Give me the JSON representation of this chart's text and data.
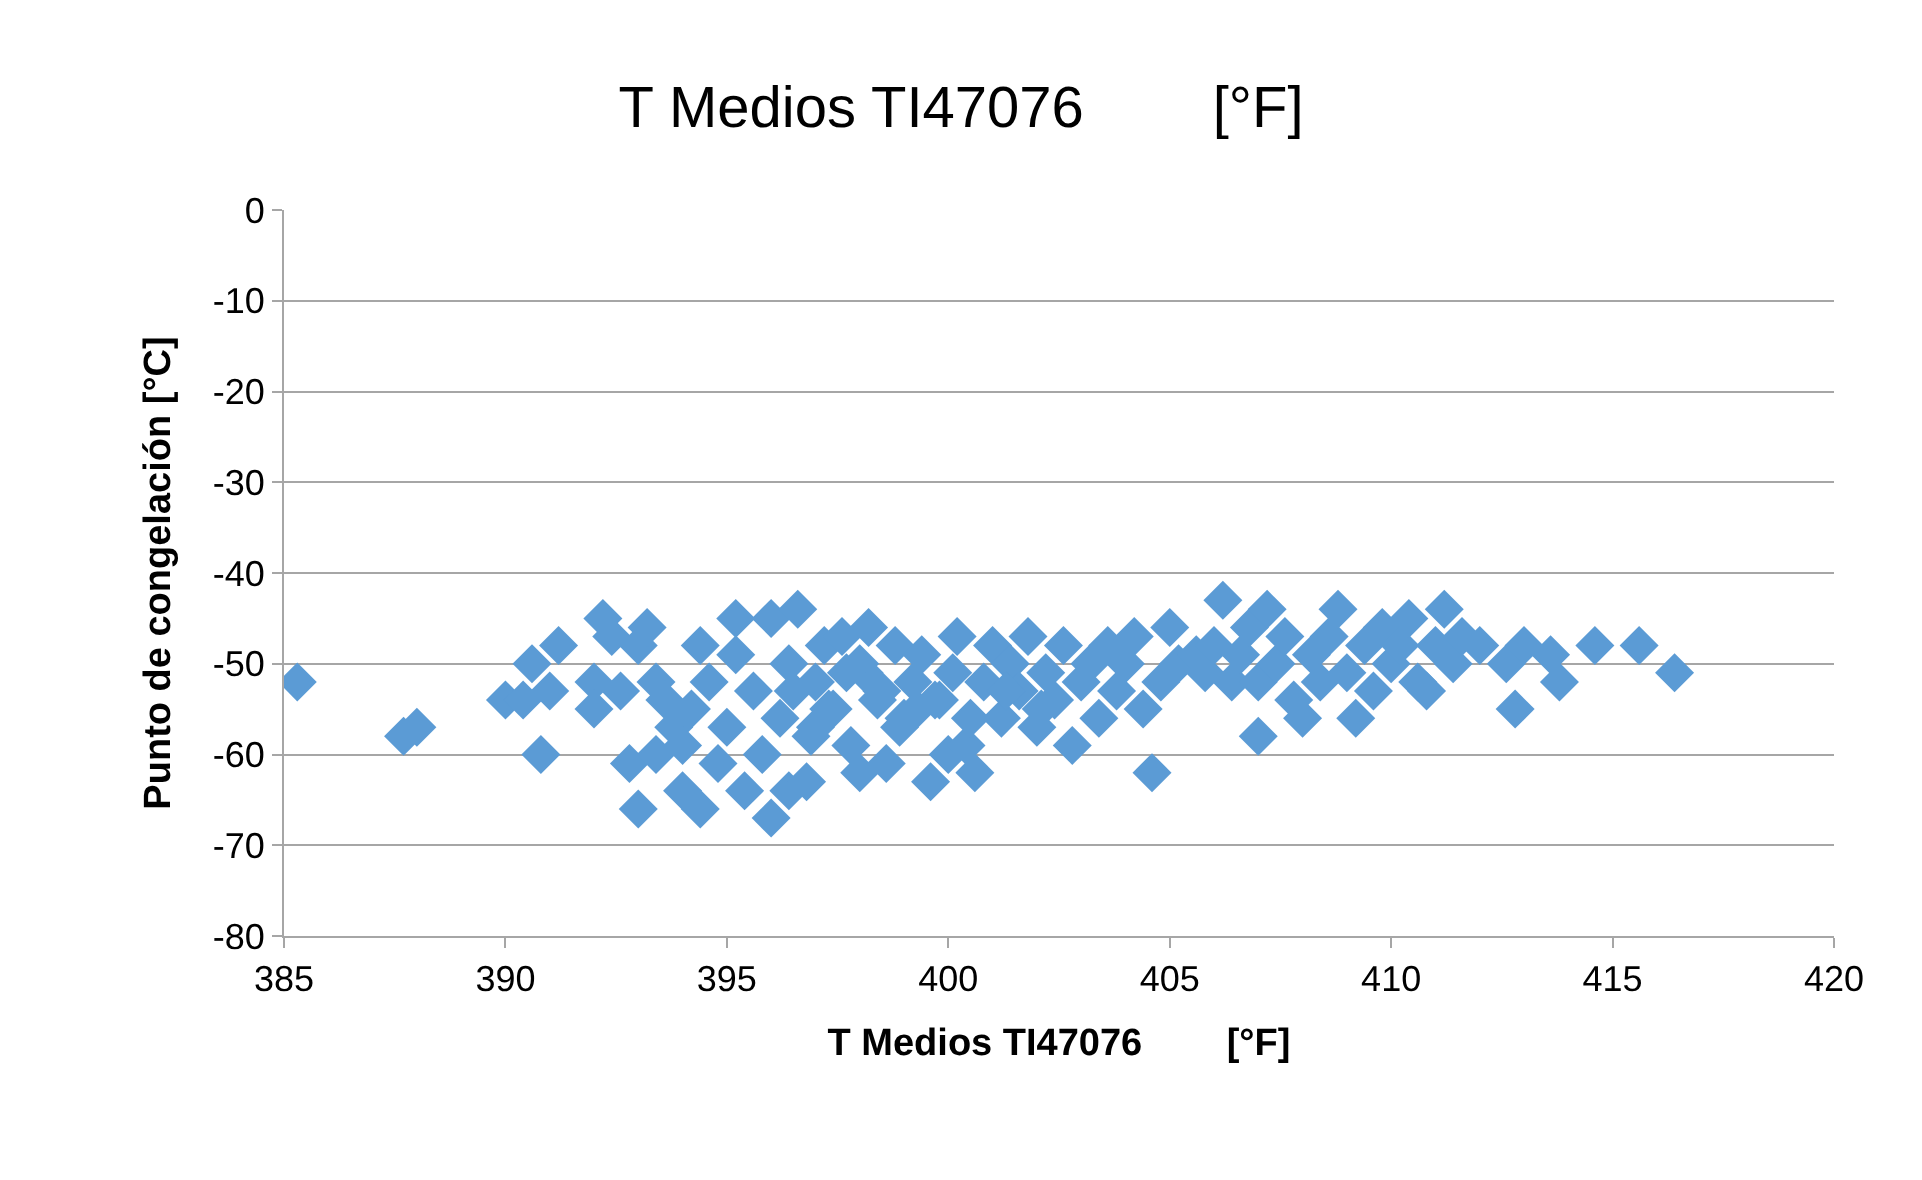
{
  "chart_data": {
    "type": "scatter",
    "title": "T Medios TI47076        [°F]",
    "xlabel": "T Medios TI47076        [°F]",
    "ylabel": "Punto de congelación [°C]",
    "xlim": [
      385,
      420
    ],
    "xticks": [
      385,
      390,
      395,
      400,
      405,
      410,
      415,
      420
    ],
    "ylim": [
      -80,
      0
    ],
    "yticks": [
      -80,
      -70,
      -60,
      -50,
      -40,
      -30,
      -20,
      -10,
      0
    ],
    "grid": "y",
    "marker": "diamond",
    "series": [
      {
        "color": "#5b9bd5",
        "x": [
          385.3,
          387.7,
          388,
          390,
          390.4,
          390.6,
          390.8,
          391,
          391.2,
          392,
          392,
          392.2,
          392.4,
          392.6,
          392.8,
          393,
          393,
          393.2,
          393.4,
          393.4,
          393.6,
          393.8,
          394,
          394,
          394.2,
          394.4,
          394.4,
          394.6,
          394.8,
          395,
          395.2,
          395.2,
          395.4,
          395.6,
          395.8,
          396,
          396,
          396.2,
          396.4,
          396.4,
          396.6,
          396.8,
          397,
          397,
          397.2,
          397.4,
          397.6,
          397.8,
          398,
          398,
          398.2,
          398.4,
          398.6,
          398.8,
          399,
          399.2,
          399.4,
          399.6,
          399.8,
          400,
          400.2,
          400.4,
          400.6,
          400.8,
          401,
          401.2,
          401.4,
          401.6,
          401.8,
          402,
          402.2,
          402.4,
          402.6,
          402.8,
          403,
          403.2,
          403.4,
          403.6,
          403.8,
          404,
          404.2,
          404.4,
          404.6,
          404.8,
          405,
          405.2,
          405.6,
          405.8,
          406,
          406.2,
          406.4,
          406.6,
          406.8,
          407,
          407,
          407.2,
          407.4,
          407.6,
          407.8,
          408,
          408.2,
          408.4,
          408.6,
          408.8,
          409,
          409.2,
          409.4,
          409.6,
          409.8,
          410,
          410.2,
          410.4,
          410.6,
          410.8,
          411,
          411.2,
          411.4,
          411.6,
          412,
          412.6,
          412.8,
          413,
          413.6,
          413.8,
          414.6,
          415.6,
          416.4,
          396.5,
          397.3,
          398.1,
          398.9,
          399.7,
          400.5,
          401.3,
          402.1,
          396.9,
          397.7,
          398.5,
          399.3,
          400.1
        ],
        "values": [
          -52,
          -58,
          -57,
          -54,
          -54,
          -50,
          -60,
          -53,
          -48,
          -52,
          -55,
          -45,
          -47,
          -53,
          -61,
          -48,
          -66,
          -46,
          -52,
          -60,
          -54,
          -57,
          -59,
          -64,
          -55,
          -66,
          -48,
          -52,
          -61,
          -57,
          -45,
          -49,
          -64,
          -53,
          -60,
          -67,
          -45,
          -56,
          -64,
          -50,
          -44,
          -63,
          -52,
          -57,
          -48,
          -55,
          -47,
          -59,
          -62,
          -50,
          -46,
          -54,
          -61,
          -48,
          -56,
          -52,
          -49,
          -63,
          -54,
          -60,
          -47,
          -59,
          -62,
          -52,
          -48,
          -56,
          -50,
          -53,
          -47,
          -57,
          -51,
          -54,
          -48,
          -59,
          -52,
          -50,
          -56,
          -48,
          -53,
          -50,
          -47,
          -55,
          -62,
          -52,
          -46,
          -50,
          -49,
          -51,
          -48,
          -43,
          -52,
          -49,
          -46,
          -58,
          -52,
          -44,
          -50,
          -47,
          -54,
          -56,
          -49,
          -52,
          -47,
          -44,
          -51,
          -56,
          -48,
          -53,
          -46,
          -50,
          -48,
          -45,
          -52,
          -53,
          -48,
          -44,
          -50,
          -47,
          -48,
          -50,
          -55,
          -48,
          -49,
          -52,
          -48,
          -48,
          -51,
          -53,
          -55,
          -51,
          -57,
          -54,
          -56,
          -53,
          -55,
          -58,
          -51,
          -53,
          -55,
          -51
        ]
      }
    ]
  }
}
